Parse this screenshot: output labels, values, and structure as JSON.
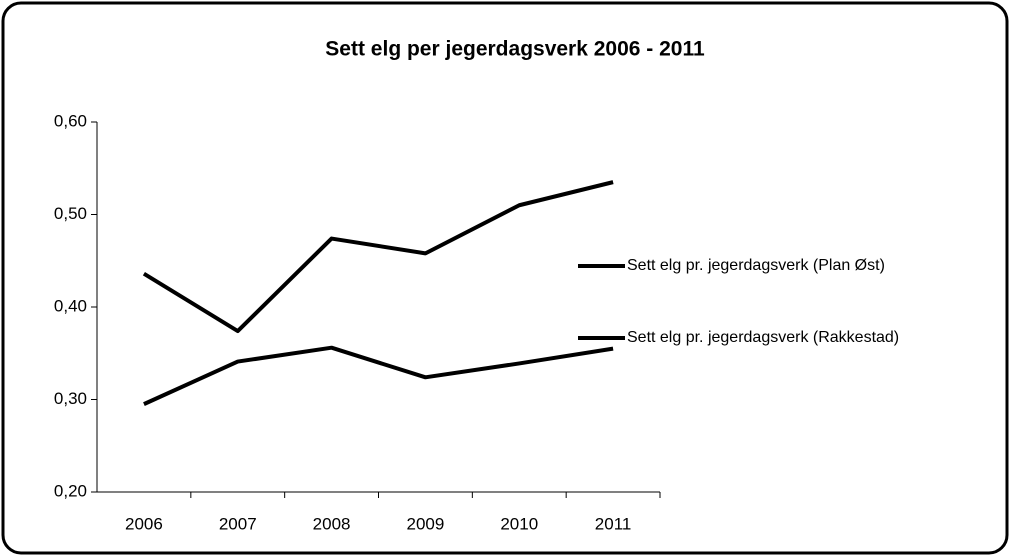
{
  "chart_data": {
    "type": "line",
    "title": "Sett elg per jegerdagsverk 2006 - 2011",
    "categories": [
      "2006",
      "2007",
      "2008",
      "2009",
      "2010",
      "2011"
    ],
    "series": [
      {
        "name": "Sett elg pr. jegerdagsverk (Plan Øst)",
        "color": "#000000",
        "values": [
          0.436,
          0.374,
          0.474,
          0.458,
          0.51,
          0.535
        ]
      },
      {
        "name": "Sett elg pr. jegerdagsverk (Rakkestad)",
        "color": "#000000",
        "values": [
          0.295,
          0.341,
          0.356,
          0.324,
          0.339,
          0.355
        ]
      }
    ],
    "ylim": [
      0.2,
      0.6
    ],
    "yticks": [
      {
        "value": 0.2,
        "label": "0,20"
      },
      {
        "value": 0.3,
        "label": "0,30"
      },
      {
        "value": 0.4,
        "label": "0,40"
      },
      {
        "value": 0.5,
        "label": "0,50"
      },
      {
        "value": 0.6,
        "label": "0,60"
      }
    ],
    "grid": false,
    "legend": "right"
  }
}
